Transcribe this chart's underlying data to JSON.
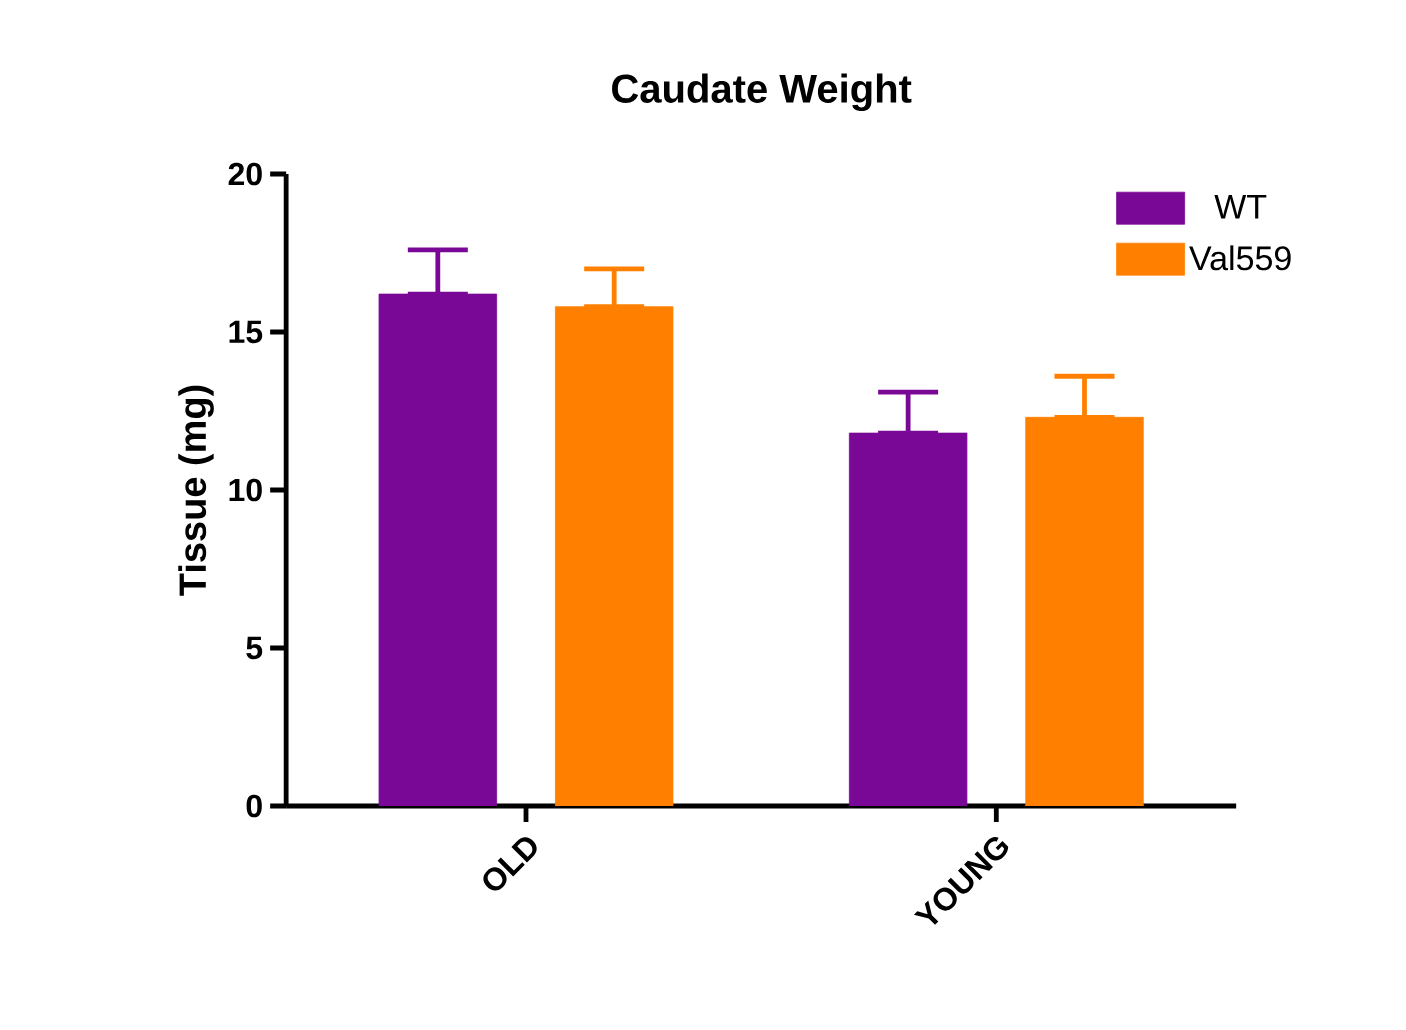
{
  "chart_data": {
    "type": "bar",
    "title": "Caudate Weight",
    "ylabel": "Tissue (mg)",
    "categories": [
      "OLD",
      "YOUNG"
    ],
    "series": [
      {
        "name": "WT",
        "color": "#7a0896",
        "values": [
          16.2,
          11.8
        ],
        "errors": [
          [
            16.2,
            17.6
          ],
          [
            11.8,
            13.1
          ]
        ]
      },
      {
        "name": "Val559",
        "color": "#ff8000",
        "values": [
          15.8,
          12.3
        ],
        "errors": [
          [
            15.8,
            17.0
          ],
          [
            12.3,
            13.6
          ]
        ]
      }
    ],
    "ylim": [
      0,
      20
    ],
    "yticks": [
      0,
      5,
      10,
      15,
      20
    ],
    "grid": false,
    "legend": "top right"
  }
}
